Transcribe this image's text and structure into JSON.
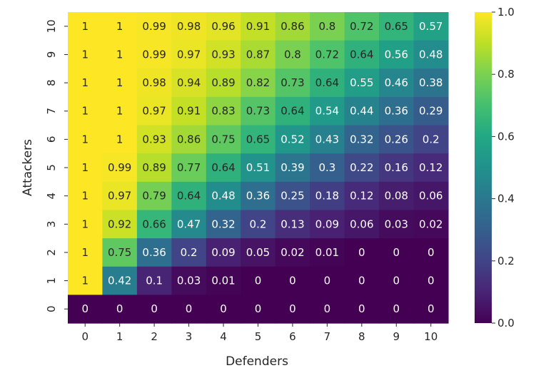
{
  "chart_data": {
    "type": "heatmap",
    "xlabel": "Defenders",
    "ylabel": "Attackers",
    "x_categories": [
      "0",
      "1",
      "2",
      "3",
      "4",
      "5",
      "6",
      "7",
      "8",
      "9",
      "10"
    ],
    "y_categories_top_to_bottom": [
      "10",
      "9",
      "8",
      "7",
      "6",
      "5",
      "4",
      "3",
      "2",
      "1",
      "0"
    ],
    "rows": [
      {
        "attackers": "10",
        "values": [
          1,
          1,
          0.99,
          0.98,
          0.96,
          0.91,
          0.86,
          0.8,
          0.72,
          0.65,
          0.57
        ],
        "labels": [
          "1",
          "1",
          "0.99",
          "0.98",
          "0.96",
          "0.91",
          "0.86",
          "0.8",
          "0.72",
          "0.65",
          "0.57"
        ]
      },
      {
        "attackers": "9",
        "values": [
          1,
          1,
          0.99,
          0.97,
          0.93,
          0.87,
          0.8,
          0.72,
          0.64,
          0.56,
          0.48
        ],
        "labels": [
          "1",
          "1",
          "0.99",
          "0.97",
          "0.93",
          "0.87",
          "0.8",
          "0.72",
          "0.64",
          "0.56",
          "0.48"
        ]
      },
      {
        "attackers": "8",
        "values": [
          1,
          1,
          0.98,
          0.94,
          0.89,
          0.82,
          0.73,
          0.64,
          0.55,
          0.46,
          0.38
        ],
        "labels": [
          "1",
          "1",
          "0.98",
          "0.94",
          "0.89",
          "0.82",
          "0.73",
          "0.64",
          "0.55",
          "0.46",
          "0.38"
        ]
      },
      {
        "attackers": "7",
        "values": [
          1,
          1,
          0.97,
          0.91,
          0.83,
          0.73,
          0.64,
          0.54,
          0.44,
          0.36,
          0.29
        ],
        "labels": [
          "1",
          "1",
          "0.97",
          "0.91",
          "0.83",
          "0.73",
          "0.64",
          "0.54",
          "0.44",
          "0.36",
          "0.29"
        ]
      },
      {
        "attackers": "6",
        "values": [
          1,
          1,
          0.93,
          0.86,
          0.75,
          0.65,
          0.52,
          0.43,
          0.32,
          0.26,
          0.2
        ],
        "labels": [
          "1",
          "1",
          "0.93",
          "0.86",
          "0.75",
          "0.65",
          "0.52",
          "0.43",
          "0.32",
          "0.26",
          "0.2"
        ]
      },
      {
        "attackers": "5",
        "values": [
          1,
          0.99,
          0.89,
          0.77,
          0.64,
          0.51,
          0.39,
          0.3,
          0.22,
          0.16,
          0.12
        ],
        "labels": [
          "1",
          "0.99",
          "0.89",
          "0.77",
          "0.64",
          "0.51",
          "0.39",
          "0.3",
          "0.22",
          "0.16",
          "0.12"
        ]
      },
      {
        "attackers": "4",
        "values": [
          1,
          0.97,
          0.79,
          0.64,
          0.48,
          0.36,
          0.25,
          0.18,
          0.12,
          0.08,
          0.06
        ],
        "labels": [
          "1",
          "0.97",
          "0.79",
          "0.64",
          "0.48",
          "0.36",
          "0.25",
          "0.18",
          "0.12",
          "0.08",
          "0.06"
        ]
      },
      {
        "attackers": "3",
        "values": [
          1,
          0.92,
          0.66,
          0.47,
          0.32,
          0.2,
          0.13,
          0.09,
          0.06,
          0.03,
          0.02
        ],
        "labels": [
          "1",
          "0.92",
          "0.66",
          "0.47",
          "0.32",
          "0.2",
          "0.13",
          "0.09",
          "0.06",
          "0.03",
          "0.02"
        ]
      },
      {
        "attackers": "2",
        "values": [
          1,
          0.75,
          0.36,
          0.2,
          0.09,
          0.05,
          0.02,
          0.01,
          0,
          0,
          0
        ],
        "labels": [
          "1",
          "0.75",
          "0.36",
          "0.2",
          "0.09",
          "0.05",
          "0.02",
          "0.01",
          "0",
          "0",
          "0"
        ]
      },
      {
        "attackers": "1",
        "values": [
          1,
          0.42,
          0.1,
          0.03,
          0.01,
          0,
          0,
          0,
          0,
          0,
          0
        ],
        "labels": [
          "1",
          "0.42",
          "0.1",
          "0.03",
          "0.01",
          "0",
          "0",
          "0",
          "0",
          "0",
          "0"
        ]
      },
      {
        "attackers": "0",
        "values": [
          0,
          0,
          0,
          0,
          0,
          0,
          0,
          0,
          0,
          0,
          0
        ],
        "labels": [
          "0",
          "0",
          "0",
          "0",
          "0",
          "0",
          "0",
          "0",
          "0",
          "0",
          "0"
        ]
      }
    ],
    "colorscale": "viridis",
    "colorbar": {
      "range": [
        0.0,
        1.0
      ],
      "ticks": [
        0.0,
        0.2,
        0.4,
        0.6,
        0.8,
        1.0
      ],
      "tick_labels": [
        "0.0",
        "0.2",
        "0.4",
        "0.6",
        "0.8",
        "1.0"
      ]
    },
    "grid": false
  }
}
